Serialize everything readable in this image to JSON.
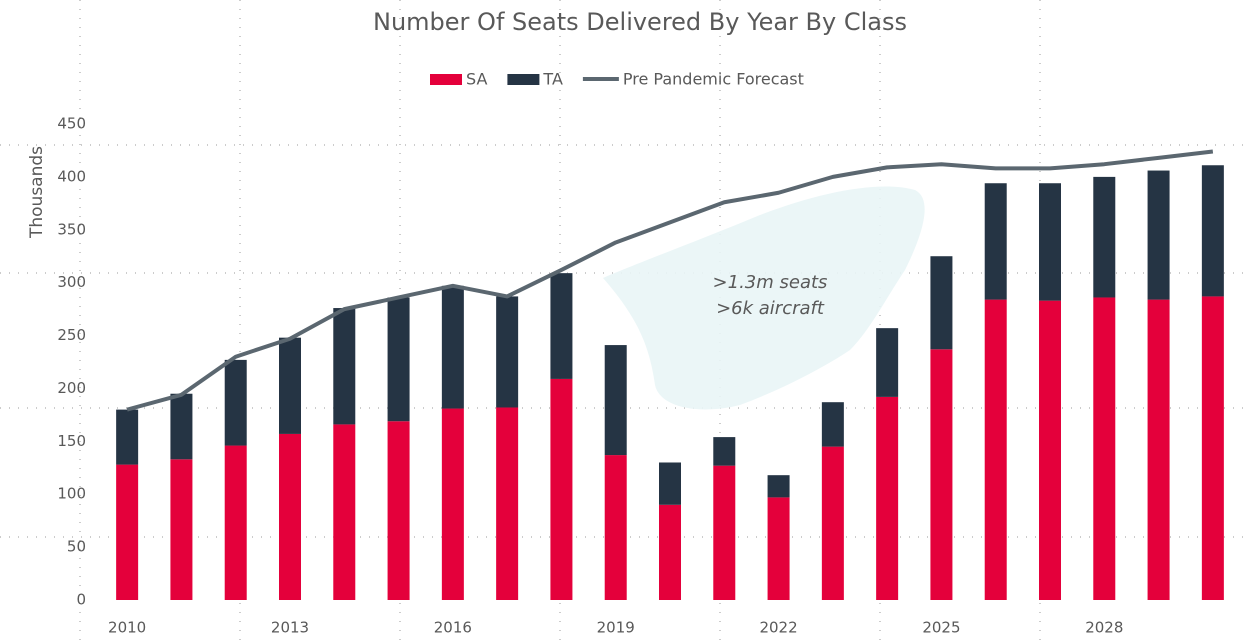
{
  "chart_data": {
    "type": "bar",
    "stacked": true,
    "title": "Number Of Seats Delivered By Year By Class",
    "y_axis_label": "Thousands",
    "annotations": [
      ">1.3m seats",
      ">6k aircraft"
    ],
    "categories": [
      "2010",
      null,
      null,
      "2013",
      null,
      null,
      "2016",
      null,
      null,
      "2019",
      null,
      null,
      "2022",
      null,
      null,
      "2025",
      null,
      null,
      "2028",
      null,
      null
    ],
    "series": [
      {
        "name": "SA",
        "type": "bar",
        "color": "#e4003b",
        "values": [
          128,
          133,
          146,
          157,
          166,
          169,
          181,
          182,
          209,
          137,
          90,
          127,
          97,
          145,
          192,
          237,
          284,
          283,
          286,
          284,
          287
        ]
      },
      {
        "name": "TA",
        "type": "bar",
        "color": "#253444",
        "values": [
          52,
          62,
          81,
          91,
          110,
          117,
          116,
          105,
          100,
          104,
          40,
          27,
          21,
          42,
          65,
          88,
          110,
          111,
          114,
          122,
          124
        ]
      },
      {
        "name": "Pre Pandemic Forecast",
        "type": "line",
        "color": "#5b6770",
        "values": [
          180,
          194,
          230,
          247,
          275,
          286,
          297,
          287,
          312,
          338,
          357,
          376,
          385,
          400,
          409,
          412,
          408,
          408,
          412,
          418,
          424
        ]
      }
    ],
    "ylim": [
      0,
      450
    ],
    "yticks": [
      0,
      50,
      100,
      150,
      200,
      250,
      300,
      350,
      400,
      450
    ],
    "legend": "top"
  }
}
